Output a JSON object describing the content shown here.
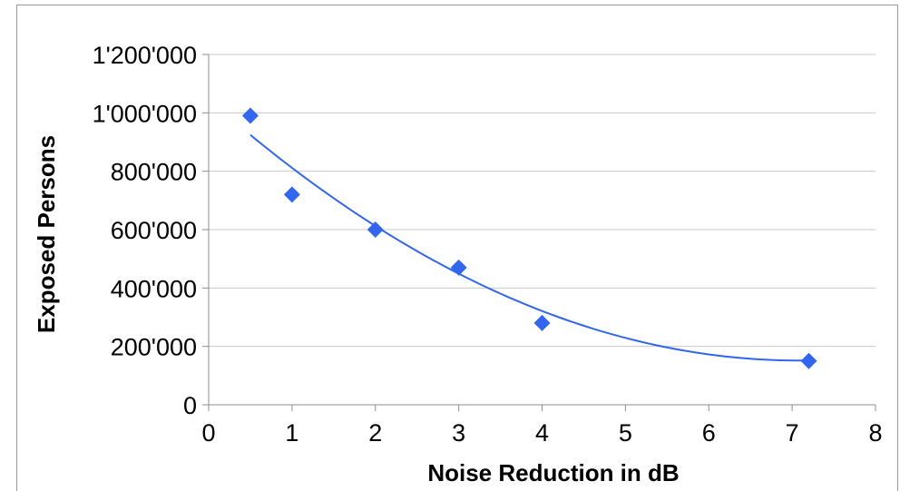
{
  "chart_data": {
    "type": "scatter",
    "xlabel": "Noise Reduction in dB",
    "ylabel": "Exposed Persons",
    "xlim": [
      0,
      8
    ],
    "ylim": [
      0,
      1200000
    ],
    "x_ticks": [
      0,
      1,
      2,
      3,
      4,
      5,
      6,
      7,
      8
    ],
    "x_tick_labels": [
      "0",
      "1",
      "2",
      "3",
      "4",
      "5",
      "6",
      "7",
      "8"
    ],
    "y_ticks": [
      0,
      200000,
      400000,
      600000,
      800000,
      1000000,
      1200000
    ],
    "y_tick_labels": [
      "0",
      "200'000",
      "400'000",
      "600'000",
      "800'000",
      "1'000'000",
      "1'200'000"
    ],
    "grid": "horizontal",
    "legend": "none",
    "series": [
      {
        "marker": "diamond",
        "color": "#3366ee",
        "x": [
          0.5,
          1,
          2,
          3,
          4,
          7.2
        ],
        "y": [
          990000,
          720000,
          600000,
          470000,
          280000,
          150000
        ]
      }
    ],
    "trendline": {
      "type": "polynomial",
      "color": "#3366ee",
      "x_range": [
        0.5,
        7.2
      ],
      "points": [
        [
          0.5,
          930000
        ],
        [
          2,
          600000
        ],
        [
          4,
          330000
        ],
        [
          7.2,
          150000
        ]
      ]
    }
  }
}
